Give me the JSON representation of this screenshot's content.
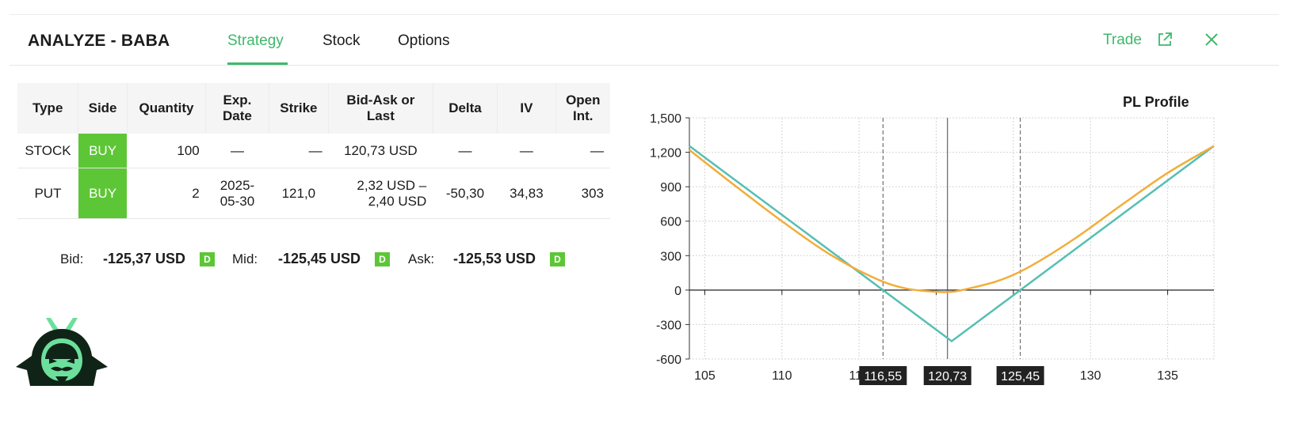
{
  "header": {
    "title": "ANALYZE - BABA",
    "tabs": [
      {
        "label": "Strategy",
        "active": true
      },
      {
        "label": "Stock",
        "active": false
      },
      {
        "label": "Options",
        "active": false
      }
    ],
    "trade_label": "Trade",
    "icons": {
      "external": "external-link-icon",
      "close": "close-icon"
    }
  },
  "legs_table": {
    "columns": [
      "Type",
      "Side",
      "Quantity",
      "Exp.\nDate",
      "Strike",
      "Bid-Ask or\nLast",
      "Delta",
      "IV",
      "Open\nInt."
    ],
    "rows": [
      {
        "type": "STOCK",
        "side": "BUY",
        "quantity": "100",
        "exp": "—",
        "strike": "—",
        "bid_ask": "120,73 USD",
        "delta": "—",
        "iv": "—",
        "open_int": "—"
      },
      {
        "type": "PUT",
        "side": "BUY",
        "quantity": "2",
        "exp": "2025-\n05-30",
        "strike": "121,0",
        "bid_ask": "2,32 USD –\n2,40 USD",
        "delta": "-50,30",
        "iv": "34,83",
        "open_int": "303"
      }
    ]
  },
  "summary": {
    "bid_label": "Bid:",
    "bid_value": "-125,37 USD",
    "mid_label": "Mid:",
    "mid_value": "-125,45 USD",
    "ask_label": "Ask:",
    "ask_value": "-125,53 USD",
    "badge": "D"
  },
  "colors": {
    "accent": "#3fb86b",
    "buy": "#5dc636",
    "expiry_line": "#55bfb3",
    "today_line": "#f2ad3a"
  },
  "chart_data": {
    "type": "line",
    "title": "PL Profile",
    "xlabel": "",
    "ylabel": "",
    "xlim": [
      104,
      138
    ],
    "ylim": [
      -600,
      1500
    ],
    "xticks": [
      105,
      110,
      115,
      120,
      125,
      130,
      135
    ],
    "yticks": [
      -600,
      -300,
      0,
      300,
      600,
      900,
      1200,
      1500
    ],
    "ytick_labels": [
      "-600",
      "-300",
      "0",
      "300",
      "600",
      "900",
      "1,200",
      "1,500"
    ],
    "grid": true,
    "markers": [
      {
        "label": "116,55",
        "x": 116.55,
        "style": "dashed"
      },
      {
        "label": "120,73",
        "x": 120.73,
        "style": "solid"
      },
      {
        "label": "125,45",
        "x": 125.45,
        "style": "dashed"
      }
    ],
    "series": [
      {
        "name": "",
        "color": "#55bfb3",
        "x": [
          104,
          116.55,
          121.0,
          125.45,
          138
        ],
        "y": [
          1255,
          0,
          -445,
          0,
          1255
        ]
      },
      {
        "name": "",
        "color": "#f2ad3a",
        "x": [
          104,
          107,
          110,
          113,
          116,
          118,
          120,
          121,
          122,
          124,
          126,
          129,
          132,
          135,
          138
        ],
        "y": [
          1220,
          905,
          600,
          320,
          105,
          15,
          -15,
          -15,
          10,
          80,
          200,
          450,
          740,
          1020,
          1255
        ]
      }
    ]
  }
}
